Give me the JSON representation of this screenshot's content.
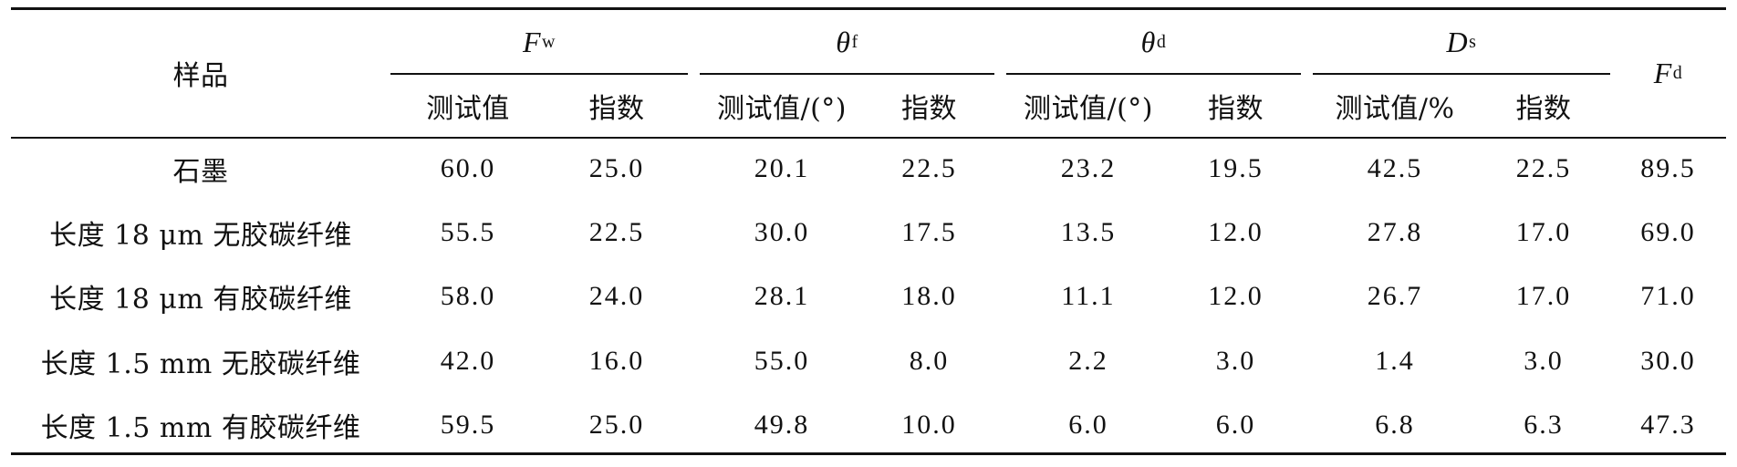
{
  "table": {
    "header": {
      "sample": "样品",
      "groups": [
        {
          "symbol": "F",
          "sub": "w"
        },
        {
          "symbol": "θ",
          "sub": "f"
        },
        {
          "symbol": "θ",
          "sub": "d"
        },
        {
          "symbol": "D",
          "sub": "s"
        }
      ],
      "last": {
        "symbol": "F",
        "sub": "d"
      },
      "subheaders": [
        "测试值",
        "指数",
        "测试值/(°)",
        "指数",
        "测试值/(°)",
        "指数",
        "测试值/%",
        "指数"
      ]
    },
    "rows": [
      {
        "name": "石墨",
        "values": [
          "60.0",
          "25.0",
          "20.1",
          "22.5",
          "23.2",
          "19.5",
          "42.5",
          "22.5",
          "89.5"
        ]
      },
      {
        "name": "长度 18 μm 无胶碳纤维",
        "values": [
          "55.5",
          "22.5",
          "30.0",
          "17.5",
          "13.5",
          "12.0",
          "27.8",
          "17.0",
          "69.0"
        ]
      },
      {
        "name": "长度 18 μm 有胶碳纤维",
        "values": [
          "58.0",
          "24.0",
          "28.1",
          "18.0",
          "11.1",
          "12.0",
          "26.7",
          "17.0",
          "71.0"
        ]
      },
      {
        "name": "长度 1.5 mm 无胶碳纤维",
        "values": [
          "42.0",
          "16.0",
          "55.0",
          "8.0",
          "2.2",
          "3.0",
          "1.4",
          "3.0",
          "30.0"
        ]
      },
      {
        "name": "长度 1.5 mm 有胶碳纤维",
        "values": [
          "59.5",
          "25.0",
          "49.8",
          "10.0",
          "6.0",
          "6.0",
          "6.8",
          "6.3",
          "47.3"
        ]
      }
    ]
  }
}
